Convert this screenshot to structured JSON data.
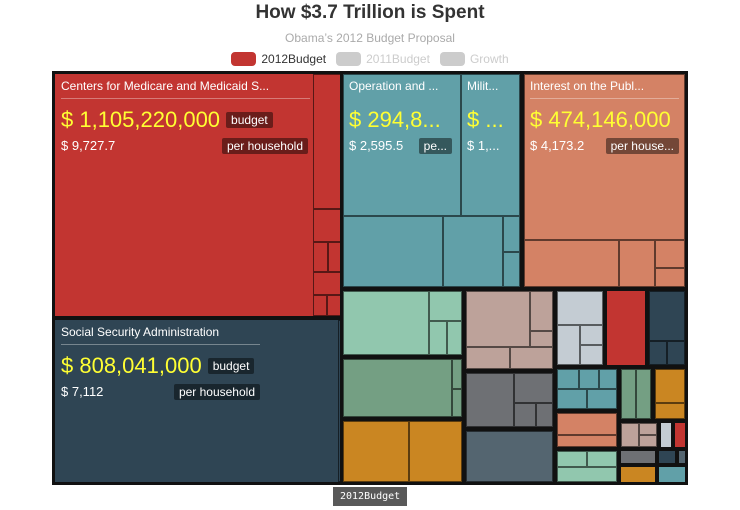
{
  "chart_data": {
    "type": "treemap",
    "title": "How $3.7 Trillion is Spent",
    "subtitle": "Obama’s 2012 Budget Proposal",
    "legend": [
      {
        "name": "2012Budget",
        "color": "#c23531",
        "active": true
      },
      {
        "name": "2011Budget",
        "color": "#cccccc",
        "active": false
      },
      {
        "name": "Growth",
        "color": "#cccccc",
        "active": false
      }
    ],
    "labels": {
      "budget": "budget",
      "per_household": "per household",
      "per_household_short": "per house...",
      "per_household_tiny": "pe..."
    },
    "nodes": [
      {
        "name": "Centers for Medicare and Medicaid S...",
        "budget": "$ 1,105,220,000",
        "per_household": "$ 9,727.7",
        "color": "#c23531"
      },
      {
        "name": "Social Security Administration",
        "budget": "$ 808,041,000",
        "per_household": "$ 7,112",
        "color": "#2f4554"
      },
      {
        "name": "Operation and ...",
        "budget": "$ 294,8...",
        "per_household": "$ 2,595.5",
        "color": "#61a0a8"
      },
      {
        "name": "Milit...",
        "budget": "$ ...",
        "per_household": "$ 1,...",
        "color": "#61a0a8"
      },
      {
        "name": "Interest on the Publ...",
        "budget": "$ 474,146,000",
        "per_household": "$ 4,173.2",
        "color": "#d48265"
      }
    ],
    "unlabeled_colors": [
      "#91c7ae",
      "#749f83",
      "#ca8622",
      "#bda29a",
      "#6e7074",
      "#546570",
      "#c4ccd3"
    ]
  },
  "tooltip": "2012Budget"
}
